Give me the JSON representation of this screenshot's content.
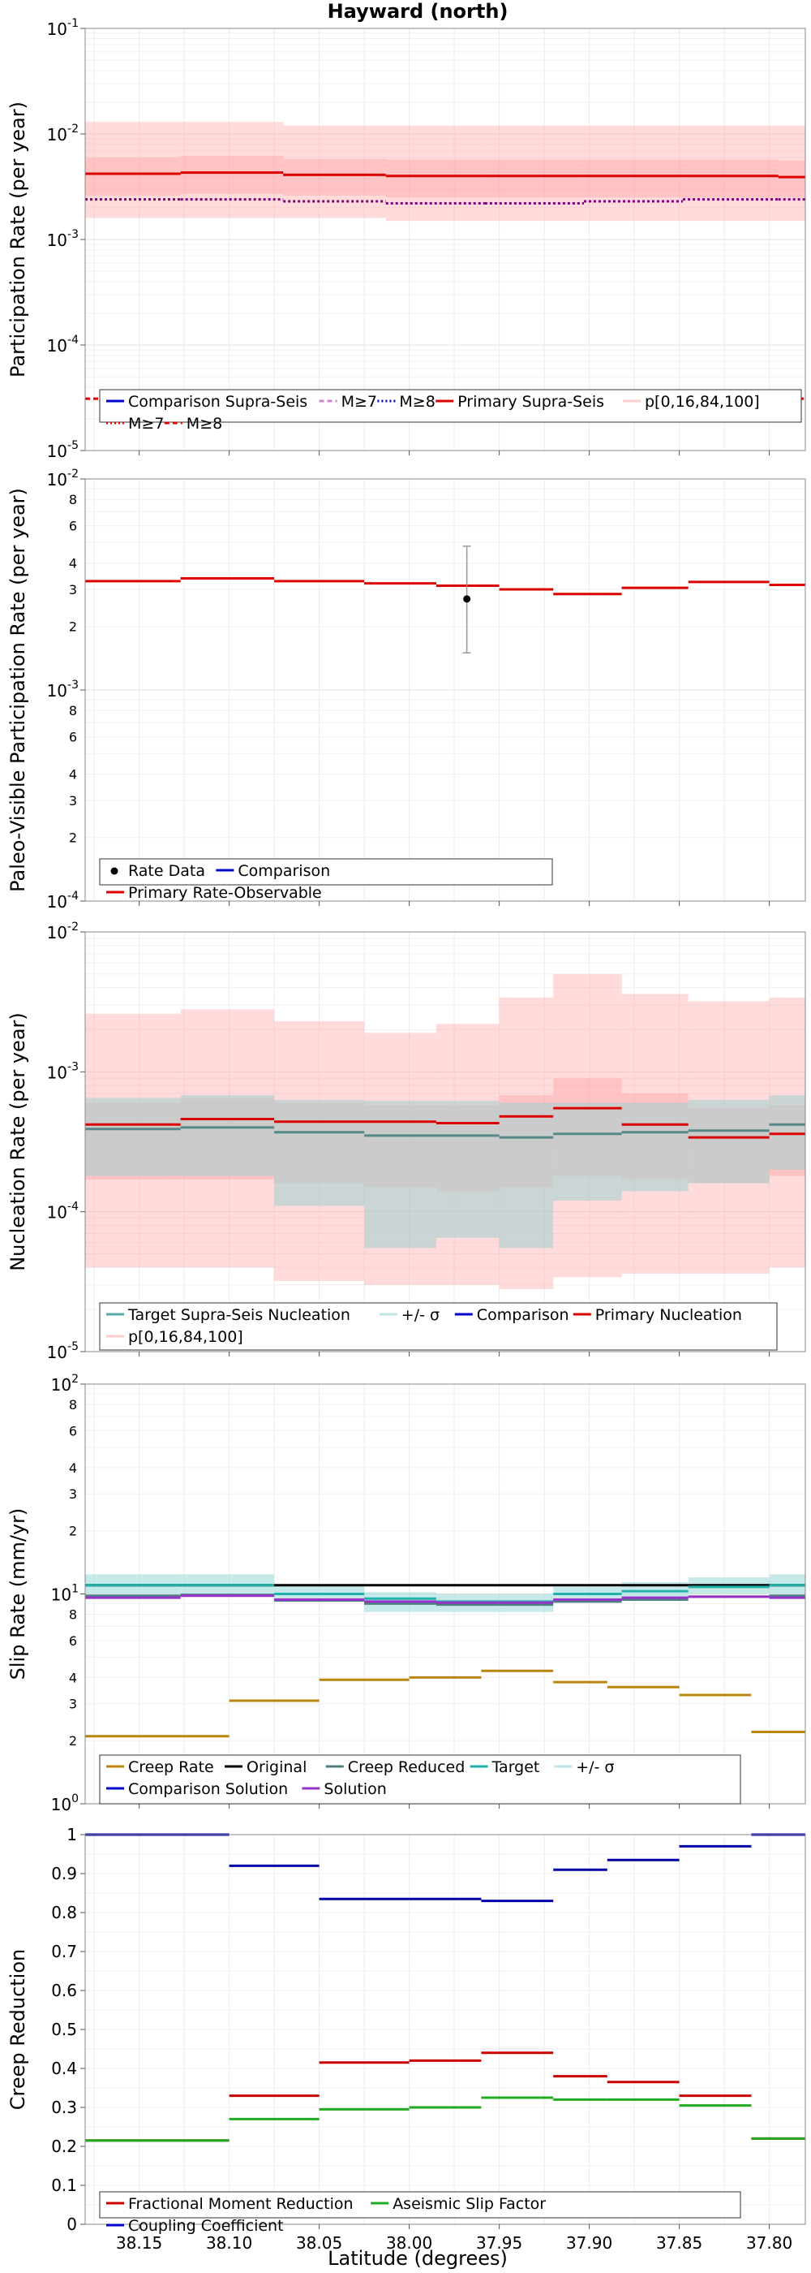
{
  "figure": {
    "title": "Hayward (north)",
    "xlabel": "Latitude (degrees)",
    "x_ticks": [
      "38.15",
      "38.10",
      "38.05",
      "38.00",
      "37.95",
      "37.90",
      "37.85",
      "37.80"
    ],
    "x_tick_values": [
      38.15,
      38.1,
      38.05,
      38.0,
      37.95,
      37.9,
      37.85,
      37.8
    ],
    "xlim": [
      38.18,
      37.78
    ]
  },
  "chart_data": [
    {
      "id": "participation",
      "type": "line",
      "scale": "log",
      "ylabel": "Participation Rate (per year)",
      "ylim": [
        1e-05,
        0.1
      ],
      "y_ticks": [
        {
          "base": "10",
          "exp": "-5",
          "value": 1e-05
        },
        {
          "base": "10",
          "exp": "-4",
          "value": 0.0001
        },
        {
          "base": "10",
          "exp": "-3",
          "value": 0.001
        },
        {
          "base": "10",
          "exp": "-2",
          "value": 0.01
        },
        {
          "base": "10",
          "exp": "-1",
          "value": 0.1
        }
      ],
      "segments": [
        38.18,
        38.127,
        38.07,
        38.013,
        37.958,
        37.903,
        37.848,
        37.795,
        37.78
      ],
      "series": [
        {
          "name": "Primary Supra-Seis",
          "kind": "step",
          "color": "#dd0000",
          "values": [
            0.0042,
            0.0043,
            0.0041,
            0.004,
            0.004,
            0.004,
            0.004,
            0.0039
          ]
        },
        {
          "name": "Primary M≥7",
          "kind": "step",
          "color": "#800080",
          "dash": "3,3",
          "values": [
            0.0024,
            0.0024,
            0.0023,
            0.0022,
            0.0022,
            0.0023,
            0.0024,
            0.0024
          ]
        },
        {
          "name": "Primary M≥8",
          "kind": "flat",
          "color": "#dd0000",
          "dash": "6,4",
          "value": 3.1e-05
        }
      ],
      "bands": [
        {
          "name": "p[0,16,84,100]",
          "color": "#ff9999",
          "opacity": 0.35,
          "low": [
            0.0016,
            0.0016,
            0.0016,
            0.0015,
            0.0015,
            0.0015,
            0.0015,
            0.0015
          ],
          "high": [
            0.013,
            0.013,
            0.012,
            0.012,
            0.012,
            0.012,
            0.012,
            0.012
          ]
        },
        {
          "name": "p[16,84]",
          "color": "#ff9999",
          "opacity": 0.35,
          "low": [
            0.0026,
            0.0027,
            0.0026,
            0.0025,
            0.0025,
            0.0025,
            0.0025,
            0.0025
          ],
          "high": [
            0.006,
            0.0062,
            0.0058,
            0.0057,
            0.0057,
            0.0057,
            0.0057,
            0.0056
          ]
        }
      ],
      "legend": {
        "position": "lower-left",
        "entries": [
          {
            "label": "Comparison Supra-Seis",
            "color": "#0000cc",
            "style": "line"
          },
          {
            "label": "M≥7",
            "color": "#cc88cc",
            "style": "dashed"
          },
          {
            "label": "M≥8",
            "color": "#0000cc",
            "style": "dotted"
          },
          {
            "label": "Primary Supra-Seis",
            "color": "#dd0000",
            "style": "line"
          },
          {
            "label": "p[0,16,84,100]",
            "color": "#ffcccc",
            "style": "line"
          },
          {
            "label": "M≥7",
            "color": "#dd0000",
            "style": "dotted"
          },
          {
            "label": "M≥8",
            "color": "#dd0000",
            "style": "dashed"
          }
        ]
      }
    },
    {
      "id": "paleo",
      "type": "line",
      "scale": "log",
      "ylabel": "Paleo-Visible Participation Rate (per year)",
      "ylim": [
        0.0001,
        0.01
      ],
      "y_ticks": [
        {
          "base": "10",
          "exp": "-4",
          "value": 0.0001
        },
        {
          "base": "10",
          "exp": "-3",
          "value": 0.001
        },
        {
          "base": "10",
          "exp": "-2",
          "value": 0.01
        }
      ],
      "minor_labels": [
        {
          "label": "2",
          "value": 0.0002
        },
        {
          "label": "3",
          "value": 0.0003
        },
        {
          "label": "4",
          "value": 0.0004
        },
        {
          "label": "6",
          "value": 0.0006
        },
        {
          "label": "8",
          "value": 0.0008
        },
        {
          "label": "2",
          "value": 0.002
        },
        {
          "label": "3",
          "value": 0.003
        },
        {
          "label": "4",
          "value": 0.004
        },
        {
          "label": "6",
          "value": 0.006
        },
        {
          "label": "8",
          "value": 0.008
        }
      ],
      "segments": [
        38.18,
        38.127,
        38.07,
        38.013,
        37.958,
        37.903,
        37.848,
        37.795,
        37.78
      ],
      "segments_fine": [
        38.18,
        38.127,
        38.075,
        38.025,
        37.985,
        37.95,
        37.92,
        37.882,
        37.845,
        37.8,
        37.78
      ],
      "series": [
        {
          "name": "Primary Rate-Observable",
          "kind": "step",
          "color": "#dd0000",
          "values": [
            0.00328,
            0.00338,
            0.00328,
            0.0032,
            0.00312,
            0.003,
            0.00285,
            0.00305,
            0.00325,
            0.00315
          ]
        }
      ],
      "points": [
        {
          "name": "Rate Data",
          "x": 37.968,
          "y": 0.0027,
          "err_low": 0.0015,
          "err_high": 0.0048
        }
      ],
      "legend": {
        "position": "lower-left",
        "entries": [
          {
            "label": "Rate Data",
            "color": "#000000",
            "style": "dot"
          },
          {
            "label": "Comparison",
            "color": "#0000cc",
            "style": "line"
          },
          {
            "label": "Primary Rate-Observable",
            "color": "#dd0000",
            "style": "line"
          }
        ]
      }
    },
    {
      "id": "nucleation",
      "type": "line",
      "scale": "log",
      "ylabel": "Nucleation Rate (per year)",
      "ylim": [
        1e-05,
        0.01
      ],
      "y_ticks": [
        {
          "base": "10",
          "exp": "-5",
          "value": 1e-05
        },
        {
          "base": "10",
          "exp": "-4",
          "value": 0.0001
        },
        {
          "base": "10",
          "exp": "-3",
          "value": 0.001
        },
        {
          "base": "10",
          "exp": "-2",
          "value": 0.01
        }
      ],
      "segments": [
        38.18,
        38.127,
        38.075,
        38.025,
        37.985,
        37.95,
        37.92,
        37.882,
        37.845,
        37.8,
        37.78
      ],
      "series": [
        {
          "name": "Primary Nucleation",
          "kind": "step",
          "color": "#dd0000",
          "values": [
            0.00042,
            0.00046,
            0.00044,
            0.00044,
            0.00043,
            0.00048,
            0.00055,
            0.00042,
            0.00034,
            0.00036
          ]
        },
        {
          "name": "Target Supra-Seis Nucleation",
          "kind": "step",
          "color": "#558888",
          "values": [
            0.00039,
            0.0004,
            0.00037,
            0.00035,
            0.00035,
            0.00034,
            0.00036,
            0.00037,
            0.00038,
            0.00042
          ]
        }
      ],
      "bands": [
        {
          "name": "p[0,16,84,100]",
          "color": "#ff9999",
          "opacity": 0.35,
          "low": [
            4e-05,
            4e-05,
            3.2e-05,
            3e-05,
            3e-05,
            2.8e-05,
            3.4e-05,
            3.6e-05,
            3.6e-05,
            4e-05
          ],
          "high": [
            0.0026,
            0.0028,
            0.0023,
            0.0019,
            0.0022,
            0.0034,
            0.005,
            0.0036,
            0.0032,
            0.0034
          ]
        },
        {
          "name": "p[16,84]",
          "color": "#ff9999",
          "opacity": 0.35,
          "low": [
            0.00017,
            0.00017,
            0.00016,
            0.00015,
            0.00014,
            0.00015,
            0.00018,
            0.00017,
            0.00016,
            0.00018
          ],
          "high": [
            0.0006,
            0.00065,
            0.0006,
            0.00058,
            0.00058,
            0.00068,
            0.0009,
            0.0007,
            0.00055,
            0.00058
          ]
        },
        {
          "name": "+/- σ",
          "color": "#a8d0d0",
          "opacity": 0.6,
          "low": [
            0.00018,
            0.00018,
            0.00011,
            5.5e-05,
            6.5e-05,
            5.5e-05,
            0.00012,
            0.00014,
            0.00016,
            0.0002
          ],
          "high": [
            0.00065,
            0.00068,
            0.00063,
            0.00062,
            0.00062,
            0.0006,
            0.0006,
            0.0006,
            0.00063,
            0.00068
          ]
        }
      ],
      "legend": {
        "position": "lower-left",
        "entries": [
          {
            "label": "Target Supra-Seis Nucleation",
            "color": "#55aaaa",
            "style": "line"
          },
          {
            "label": "+/- σ",
            "color": "#bfe6e6",
            "style": "line"
          },
          {
            "label": "Comparison",
            "color": "#0000cc",
            "style": "line"
          },
          {
            "label": "Primary Nucleation",
            "color": "#dd0000",
            "style": "line"
          },
          {
            "label": "p[0,16,84,100]",
            "color": "#ffcccc",
            "style": "line"
          }
        ]
      }
    },
    {
      "id": "slip",
      "type": "line",
      "scale": "log",
      "ylabel": "Slip Rate (mm/yr)",
      "ylim": [
        1,
        100
      ],
      "y_ticks": [
        {
          "base": "10",
          "exp": "0",
          "value": 1
        },
        {
          "base": "10",
          "exp": "1",
          "value": 10
        },
        {
          "base": "10",
          "exp": "2",
          "value": 100
        }
      ],
      "minor_labels": [
        {
          "label": "2",
          "value": 2
        },
        {
          "label": "3",
          "value": 3
        },
        {
          "label": "4",
          "value": 4
        },
        {
          "label": "6",
          "value": 6
        },
        {
          "label": "8",
          "value": 8
        },
        {
          "label": "2",
          "value": 20
        },
        {
          "label": "3",
          "value": 30
        },
        {
          "label": "4",
          "value": 40
        },
        {
          "label": "6",
          "value": 60
        },
        {
          "label": "8",
          "value": 80
        }
      ],
      "segments": [
        38.18,
        38.1,
        38.05,
        38.0,
        37.95,
        37.9,
        37.855,
        37.82,
        37.78
      ],
      "segments_fine": [
        38.18,
        38.127,
        38.075,
        38.025,
        37.985,
        37.95,
        37.92,
        37.882,
        37.845,
        37.8,
        37.78
      ],
      "series": [
        {
          "name": "Creep Rate",
          "kind": "step",
          "color": "#b8860b",
          "values": [
            2.1,
            3.1,
            3.9,
            4.0,
            4.3,
            3.8,
            3.6,
            3.3,
            2.2
          ],
          "x_key": "segments_custom",
          "x_edges": [
            38.18,
            38.1,
            38.05,
            38.0,
            37.96,
            37.92,
            37.89,
            37.85,
            37.81,
            37.78
          ]
        },
        {
          "name": "Original",
          "kind": "flat",
          "color": "#000000",
          "value": 11
        },
        {
          "name": "Target",
          "kind": "step",
          "color": "#20b2aa",
          "values": [
            11,
            11,
            10,
            9.5,
            9.2,
            9.2,
            10.0,
            10.3,
            10.8,
            11
          ]
        },
        {
          "name": "Creep Reduced",
          "kind": "step",
          "color": "#4c7f7f",
          "values": [
            9.8,
            9.9,
            9.3,
            9.0,
            8.9,
            8.9,
            9.2,
            9.4,
            9.7,
            9.8
          ]
        },
        {
          "name": "Solution",
          "kind": "step",
          "color": "#9932cc",
          "values": [
            9.6,
            9.8,
            9.4,
            9.2,
            9.1,
            9.1,
            9.4,
            9.6,
            9.7,
            9.6
          ]
        }
      ],
      "bands": [
        {
          "name": "+/- σ",
          "color": "#a0dcdc",
          "opacity": 0.6,
          "low": [
            10.0,
            10.0,
            9.4,
            8.2,
            8.2,
            8.2,
            9.4,
            9.6,
            10.0,
            10.0
          ],
          "high": [
            12.4,
            12.4,
            11.0,
            10.2,
            10.0,
            10.0,
            10.8,
            11.4,
            12.0,
            12.4
          ]
        }
      ],
      "legend": {
        "position": "lower-left",
        "entries": [
          {
            "label": "Creep Rate",
            "color": "#b8860b",
            "style": "line"
          },
          {
            "label": "Original",
            "color": "#000000",
            "style": "line"
          },
          {
            "label": "Creep Reduced",
            "color": "#4c7f7f",
            "style": "line"
          },
          {
            "label": "Target",
            "color": "#20b2aa",
            "style": "line"
          },
          {
            "label": "+/- σ",
            "color": "#bfe6e6",
            "style": "line"
          },
          {
            "label": "Comparison Solution",
            "color": "#0000cc",
            "style": "line"
          },
          {
            "label": "Solution",
            "color": "#9932cc",
            "style": "line"
          }
        ]
      }
    },
    {
      "id": "creep",
      "type": "line",
      "scale": "linear",
      "ylabel": "Creep Reduction",
      "ylim": [
        0,
        1
      ],
      "y_ticks": [
        {
          "label": "0",
          "value": 0
        },
        {
          "label": "0.1",
          "value": 0.1
        },
        {
          "label": "0.2",
          "value": 0.2
        },
        {
          "label": "0.3",
          "value": 0.3
        },
        {
          "label": "0.4",
          "value": 0.4
        },
        {
          "label": "0.5",
          "value": 0.5
        },
        {
          "label": "0.6",
          "value": 0.6
        },
        {
          "label": "0.7",
          "value": 0.7
        },
        {
          "label": "0.8",
          "value": 0.8
        },
        {
          "label": "0.9",
          "value": 0.9
        },
        {
          "label": "1",
          "value": 1
        }
      ],
      "x_edges": [
        38.18,
        38.1,
        38.05,
        38.0,
        37.96,
        37.92,
        37.89,
        37.85,
        37.81,
        37.78
      ],
      "series": [
        {
          "name": "Fractional Moment Reduction",
          "kind": "step",
          "color": "#cc0000",
          "values": [
            0.215,
            0.33,
            0.415,
            0.42,
            0.44,
            0.38,
            0.365,
            0.33,
            0.22
          ]
        },
        {
          "name": "Aseismic Slip Factor",
          "kind": "step",
          "color": "#22aa22",
          "values": [
            0.215,
            0.27,
            0.295,
            0.3,
            0.325,
            0.32,
            0.32,
            0.305,
            0.22
          ]
        },
        {
          "name": "Coupling Coefficient",
          "kind": "step",
          "color": "#0000aa",
          "values": [
            1.0,
            0.92,
            0.835,
            0.835,
            0.83,
            0.91,
            0.935,
            0.97,
            1.0
          ]
        }
      ],
      "legend": {
        "position": "lower-left",
        "entries": [
          {
            "label": "Fractional Moment Reduction",
            "color": "#cc0000",
            "style": "line"
          },
          {
            "label": "Aseismic Slip Factor",
            "color": "#22aa22",
            "style": "line"
          },
          {
            "label": "Coupling Coefficient",
            "color": "#0000cc",
            "style": "line"
          }
        ]
      }
    }
  ]
}
